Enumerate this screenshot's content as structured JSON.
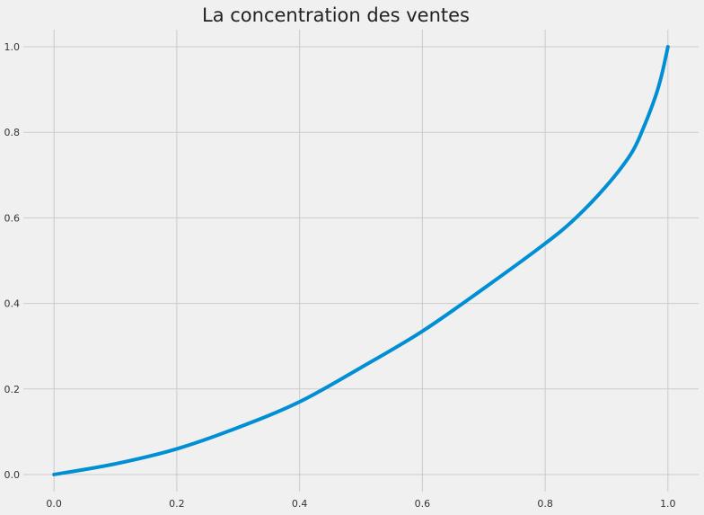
{
  "chart_data": {
    "type": "line",
    "title": "La concentration des ventes",
    "xlabel": "",
    "ylabel": "",
    "xlim": [
      -0.05,
      1.05
    ],
    "ylim": [
      -0.04,
      1.04
    ],
    "xticks": [
      0.0,
      0.2,
      0.4,
      0.6,
      0.8,
      1.0
    ],
    "xtick_labels": [
      "0.0",
      "0.2",
      "0.4",
      "0.6",
      "0.8",
      "1.0"
    ],
    "yticks": [
      0.0,
      0.2,
      0.4,
      0.6,
      0.8,
      1.0
    ],
    "ytick_labels": [
      "0.0",
      "0.2",
      "0.4",
      "0.6",
      "0.8",
      "1.0"
    ],
    "grid": true,
    "series": [
      {
        "color": "#008fd5",
        "x": [
          0.0,
          0.1,
          0.2,
          0.3,
          0.4,
          0.5,
          0.6,
          0.7,
          0.8,
          0.85,
          0.9,
          0.94,
          0.96,
          0.98,
          0.99,
          1.0
        ],
        "y": [
          0.0,
          0.025,
          0.06,
          0.11,
          0.17,
          0.25,
          0.335,
          0.435,
          0.54,
          0.6,
          0.675,
          0.75,
          0.81,
          0.885,
          0.935,
          1.0
        ]
      }
    ]
  }
}
